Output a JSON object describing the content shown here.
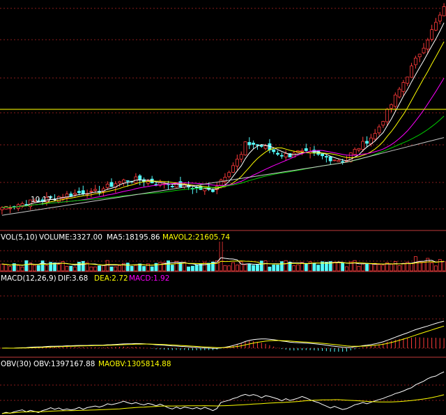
{
  "colors": {
    "background": "#000000",
    "up": "#ff3a3a",
    "down": "#54fcfc",
    "grid": "#8a1c1c",
    "divider": "#c03a3a",
    "white": "#ffffff",
    "yellow": "#ffff00",
    "magenta": "#ff00ff",
    "green": "#00d000",
    "gray": "#c8c8c8",
    "hline": "#d8d800"
  },
  "price_panel": {
    "low_label": "10.17",
    "arrow_glyph": "→",
    "arrow_icon": "right-arrow-icon",
    "reference_line": true
  },
  "volume_panel": {
    "indicator": "VOL(5,10)",
    "volume": "VOLUME:3327.00",
    "ma5": "MA5:18195.86",
    "mavol2": "MAVOL2:21605.74"
  },
  "macd_panel": {
    "indicator": "MACD(12,26,9)",
    "dif": "DIF:3.68",
    "dea": "DEA:2.72",
    "macd": "MACD:1.92"
  },
  "obv_panel": {
    "indicator": "OBV(30)",
    "obv": "OBV:1397167.88",
    "maobv": "MAOBV:1305814.88"
  },
  "chart_data": {
    "type": "candlestick",
    "panels": [
      "price",
      "volume",
      "macd",
      "obv"
    ],
    "grid": true,
    "price_scale": "no axis labels printed",
    "price_axis_range": [
      9.2,
      19.5
    ],
    "reference_price": 14.6,
    "labeled_low": 10.17
  }
}
